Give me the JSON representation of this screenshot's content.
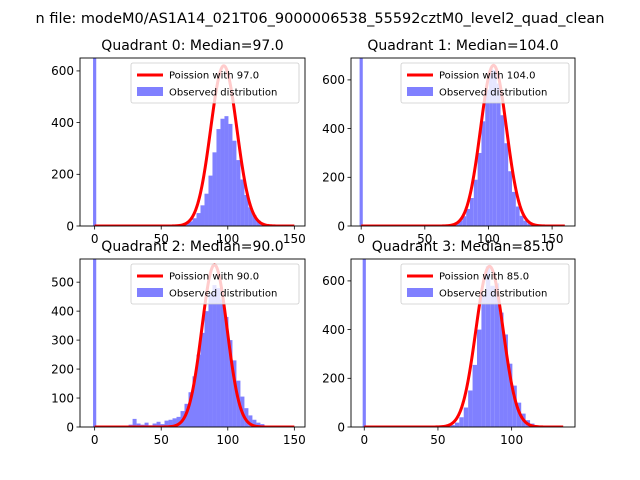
{
  "figure": {
    "suptitle": "n file: modeM0/AS1A14_021T06_9000006538_55592cztM0_level2_quad_clean",
    "colors": {
      "observed_fill": "#8080ff",
      "poisson_line": "#ff0000",
      "frame": "#000000"
    }
  },
  "chart_data": [
    {
      "type": "bar",
      "title": "Quadrant 0: Median=97.0",
      "xlim": [
        -11,
        158
      ],
      "ylim": [
        0,
        650
      ],
      "xticks": [
        0,
        50,
        100,
        150
      ],
      "yticks": [
        0,
        200,
        400,
        600
      ],
      "bin_width": 3,
      "zero_bin": {
        "x": 0,
        "value": 650
      },
      "hist": [
        {
          "x": 63,
          "y": 3
        },
        {
          "x": 66,
          "y": 5
        },
        {
          "x": 69,
          "y": 10
        },
        {
          "x": 72,
          "y": 18
        },
        {
          "x": 75,
          "y": 30
        },
        {
          "x": 78,
          "y": 50
        },
        {
          "x": 81,
          "y": 80
        },
        {
          "x": 84,
          "y": 125
        },
        {
          "x": 87,
          "y": 195
        },
        {
          "x": 90,
          "y": 285
        },
        {
          "x": 93,
          "y": 375
        },
        {
          "x": 96,
          "y": 415
        },
        {
          "x": 99,
          "y": 425
        },
        {
          "x": 102,
          "y": 395
        },
        {
          "x": 105,
          "y": 330
        },
        {
          "x": 108,
          "y": 255
        },
        {
          "x": 111,
          "y": 180
        },
        {
          "x": 114,
          "y": 120
        },
        {
          "x": 117,
          "y": 72
        },
        {
          "x": 120,
          "y": 42
        },
        {
          "x": 123,
          "y": 22
        },
        {
          "x": 126,
          "y": 12
        },
        {
          "x": 129,
          "y": 6
        },
        {
          "x": 132,
          "y": 3
        }
      ],
      "poisson": {
        "lambda": 97.0,
        "peak": 620,
        "x_range": [
          0,
          150
        ]
      },
      "legend": {
        "position": "top-right",
        "line_label": "Poission with 97.0",
        "patch_label": "Observed distribution"
      }
    },
    {
      "type": "bar",
      "title": "Quadrant 1: Median=104.0",
      "xlim": [
        -8,
        168
      ],
      "ylim": [
        0,
        690
      ],
      "xticks": [
        0,
        50,
        100,
        150
      ],
      "yticks": [
        0,
        200,
        400,
        600
      ],
      "bin_width": 3,
      "zero_bin": {
        "x": 0,
        "value": 690
      },
      "hist": [
        {
          "x": 69,
          "y": 3
        },
        {
          "x": 72,
          "y": 6
        },
        {
          "x": 75,
          "y": 12
        },
        {
          "x": 78,
          "y": 22
        },
        {
          "x": 81,
          "y": 40
        },
        {
          "x": 84,
          "y": 70
        },
        {
          "x": 87,
          "y": 115
        },
        {
          "x": 90,
          "y": 190
        },
        {
          "x": 93,
          "y": 300
        },
        {
          "x": 96,
          "y": 430
        },
        {
          "x": 99,
          "y": 560
        },
        {
          "x": 102,
          "y": 645
        },
        {
          "x": 105,
          "y": 640
        },
        {
          "x": 108,
          "y": 585
        },
        {
          "x": 111,
          "y": 455
        },
        {
          "x": 114,
          "y": 340
        },
        {
          "x": 117,
          "y": 225
        },
        {
          "x": 120,
          "y": 140
        },
        {
          "x": 123,
          "y": 80
        },
        {
          "x": 126,
          "y": 42
        },
        {
          "x": 129,
          "y": 22
        },
        {
          "x": 132,
          "y": 10
        },
        {
          "x": 135,
          "y": 5
        }
      ],
      "poisson": {
        "lambda": 104.0,
        "peak": 660,
        "x_range": [
          0,
          160
        ]
      },
      "legend": {
        "position": "top-right",
        "line_label": "Poission with 104.0",
        "patch_label": "Observed distribution"
      }
    },
    {
      "type": "bar",
      "title": "Quadrant 2: Median=90.0",
      "xlim": [
        -11,
        158
      ],
      "ylim": [
        0,
        580
      ],
      "xticks": [
        0,
        50,
        100,
        150
      ],
      "yticks": [
        0,
        100,
        200,
        300,
        400,
        500
      ],
      "bin_width": 3,
      "zero_bin": {
        "x": 0,
        "value": 580
      },
      "hist": [
        {
          "x": 27,
          "y": 8
        },
        {
          "x": 30,
          "y": 28
        },
        {
          "x": 33,
          "y": 12
        },
        {
          "x": 36,
          "y": 8
        },
        {
          "x": 39,
          "y": 15
        },
        {
          "x": 42,
          "y": 6
        },
        {
          "x": 45,
          "y": 12
        },
        {
          "x": 48,
          "y": 18
        },
        {
          "x": 51,
          "y": 10
        },
        {
          "x": 54,
          "y": 22
        },
        {
          "x": 57,
          "y": 25
        },
        {
          "x": 60,
          "y": 30
        },
        {
          "x": 63,
          "y": 35
        },
        {
          "x": 66,
          "y": 55
        },
        {
          "x": 69,
          "y": 80
        },
        {
          "x": 72,
          "y": 120
        },
        {
          "x": 75,
          "y": 175
        },
        {
          "x": 78,
          "y": 250
        },
        {
          "x": 81,
          "y": 325
        },
        {
          "x": 84,
          "y": 400
        },
        {
          "x": 87,
          "y": 460
        },
        {
          "x": 90,
          "y": 490
        },
        {
          "x": 93,
          "y": 480
        },
        {
          "x": 96,
          "y": 440
        },
        {
          "x": 99,
          "y": 380
        },
        {
          "x": 102,
          "y": 300
        },
        {
          "x": 105,
          "y": 230
        },
        {
          "x": 108,
          "y": 160
        },
        {
          "x": 111,
          "y": 105
        },
        {
          "x": 114,
          "y": 65
        },
        {
          "x": 117,
          "y": 40
        },
        {
          "x": 120,
          "y": 25
        },
        {
          "x": 123,
          "y": 15
        },
        {
          "x": 126,
          "y": 10
        },
        {
          "x": 129,
          "y": 5
        }
      ],
      "poisson": {
        "lambda": 90.0,
        "peak": 560,
        "x_range": [
          0,
          150
        ]
      },
      "legend": {
        "position": "top-right",
        "line_label": "Poission with 90.0",
        "patch_label": "Observed distribution"
      }
    },
    {
      "type": "bar",
      "title": "Quadrant 3: Median=85.0",
      "xlim": [
        -9,
        143
      ],
      "ylim": [
        0,
        690
      ],
      "xticks": [
        0,
        50,
        100
      ],
      "yticks": [
        0,
        200,
        400,
        600
      ],
      "bin_width": 3,
      "zero_bin": {
        "x": 0,
        "value": 690
      },
      "hist": [
        {
          "x": 57,
          "y": 3
        },
        {
          "x": 60,
          "y": 8
        },
        {
          "x": 63,
          "y": 18
        },
        {
          "x": 66,
          "y": 40
        },
        {
          "x": 69,
          "y": 80
        },
        {
          "x": 72,
          "y": 150
        },
        {
          "x": 75,
          "y": 255
        },
        {
          "x": 78,
          "y": 400
        },
        {
          "x": 81,
          "y": 545
        },
        {
          "x": 84,
          "y": 660
        },
        {
          "x": 87,
          "y": 580
        },
        {
          "x": 90,
          "y": 590
        },
        {
          "x": 93,
          "y": 470
        },
        {
          "x": 96,
          "y": 380
        },
        {
          "x": 99,
          "y": 260
        },
        {
          "x": 102,
          "y": 170
        },
        {
          "x": 105,
          "y": 100
        },
        {
          "x": 108,
          "y": 55
        },
        {
          "x": 111,
          "y": 28
        },
        {
          "x": 114,
          "y": 14
        },
        {
          "x": 117,
          "y": 6
        },
        {
          "x": 120,
          "y": 3
        }
      ],
      "poisson": {
        "lambda": 85.0,
        "peak": 660,
        "x_range": [
          0,
          135
        ]
      },
      "legend": {
        "position": "top-right",
        "line_label": "Poission with 85.0",
        "patch_label": "Observed distribution"
      }
    }
  ]
}
